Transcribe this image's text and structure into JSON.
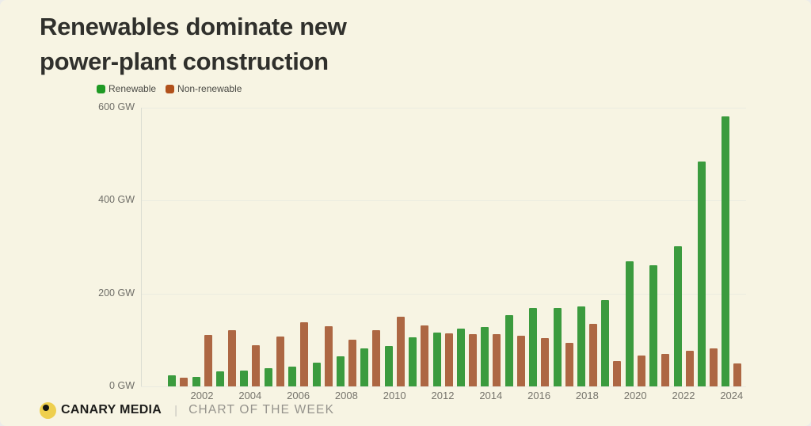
{
  "page": {
    "background": "#f7f4e3"
  },
  "header": {
    "title": "Renewables dominate new power-plant construction",
    "title_lines": [
      "Renewables dominate new",
      "power-plant construction"
    ]
  },
  "legend": {
    "items": [
      {
        "label": "Renewable",
        "color": "#1f9a24"
      },
      {
        "label": "Non-renewable",
        "color": "#b1511b"
      }
    ]
  },
  "chart_data": {
    "type": "bar",
    "title": "Renewables dominate new power-plant construction",
    "xlabel": "",
    "ylabel": "GW",
    "ylim": [
      0,
      600
    ],
    "grid": true,
    "legend_position": "top-left",
    "y_tick_values": [
      0,
      200,
      400,
      600
    ],
    "y_tick_labels": [
      "0 GW",
      "200 GW",
      "400 GW",
      "600 GW"
    ],
    "x_tick_years": [
      2002,
      2004,
      2006,
      2008,
      2010,
      2012,
      2014,
      2016,
      2018,
      2020,
      2022,
      2024
    ],
    "categories": [
      2001,
      2002,
      2003,
      2004,
      2005,
      2006,
      2007,
      2008,
      2009,
      2010,
      2011,
      2012,
      2013,
      2014,
      2015,
      2016,
      2017,
      2018,
      2019,
      2020,
      2021,
      2022,
      2023,
      2024
    ],
    "series": [
      {
        "name": "Renewable",
        "color": "#3b9b3e",
        "values": [
          24,
          21,
          32,
          34,
          40,
          43,
          51,
          64,
          81,
          87,
          105,
          115,
          124,
          128,
          153,
          169,
          168,
          172,
          185,
          269,
          261,
          302,
          483,
          581
        ]
      },
      {
        "name": "Non-renewable",
        "color": "#ad6743",
        "values": [
          19,
          111,
          121,
          89,
          107,
          138,
          130,
          101,
          121,
          149,
          131,
          114,
          113,
          113,
          109,
          104,
          94,
          135,
          54,
          66,
          69,
          76,
          82,
          49
        ]
      }
    ]
  },
  "footer": {
    "brand": "CANARY MEDIA",
    "separator": "|",
    "tagline": "CHART OF THE WEEK",
    "logo_color": "#eecf4e"
  }
}
